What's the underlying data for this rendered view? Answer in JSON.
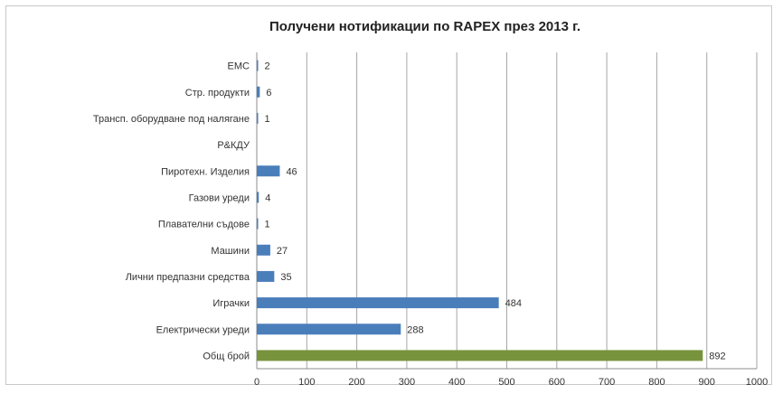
{
  "chart_data": {
    "type": "bar",
    "orientation": "horizontal",
    "title": "Получени нотификации по RAPEX през 2013 г.",
    "xlabel": "",
    "ylabel": "",
    "xlim": [
      0,
      1000
    ],
    "x_ticks": [
      0,
      100,
      200,
      300,
      400,
      500,
      600,
      700,
      800,
      900,
      1000
    ],
    "grid": "vertical",
    "legend": "none",
    "categories": [
      "ЕМС",
      "Стр. продукти",
      "Трансп. оборудване под налягане",
      "Р&КДУ",
      "Пиротехн. Изделия",
      "Газови уреди",
      "Плавателни съдове",
      "Машини",
      "Лични предпазни средства",
      "Играчки",
      "Електрически уреди",
      "Общ брой"
    ],
    "values": [
      2,
      6,
      1,
      null,
      46,
      4,
      1,
      27,
      35,
      484,
      288,
      892
    ],
    "data_labels": [
      "2",
      "6",
      "1",
      "",
      "46",
      "4",
      "1",
      "27",
      "35",
      "484",
      "288",
      "892"
    ],
    "colors": [
      "#4a7ebb",
      "#4a7ebb",
      "#4a7ebb",
      "#4a7ebb",
      "#4a7ebb",
      "#4a7ebb",
      "#4a7ebb",
      "#4a7ebb",
      "#4a7ebb",
      "#4a7ebb",
      "#4a7ebb",
      "#77933c"
    ]
  }
}
